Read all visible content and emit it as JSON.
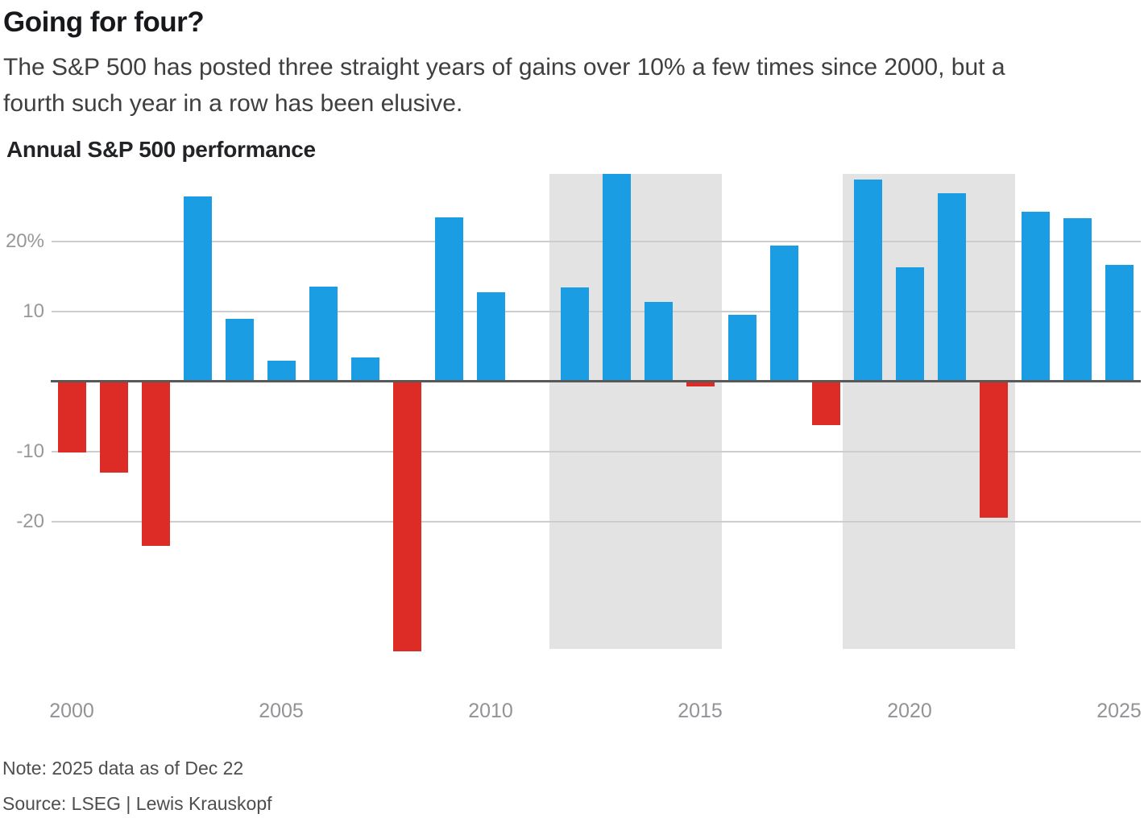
{
  "header": {
    "title": "Going for four?",
    "subtitle_lines": [
      "The S&P 500 has posted three straight years of gains over 10% a few times since 2000, but a",
      "fourth such year in a row has been elusive."
    ],
    "chart_heading": "Annual S&P 500 performance"
  },
  "chart_data": {
    "type": "bar",
    "title": "Annual S&P 500 performance",
    "xlabel": "",
    "ylabel": "",
    "unit": "%",
    "x": [
      2000,
      2001,
      2002,
      2003,
      2004,
      2005,
      2006,
      2007,
      2008,
      2009,
      2010,
      2011,
      2012,
      2013,
      2014,
      2015,
      2016,
      2017,
      2018,
      2019,
      2020,
      2021,
      2022,
      2023,
      2024,
      2025
    ],
    "values": [
      -10.1,
      -13.0,
      -23.4,
      26.4,
      9.0,
      3.0,
      13.6,
      3.5,
      -38.5,
      23.5,
      12.8,
      0.0,
      13.4,
      29.6,
      11.4,
      -0.7,
      9.5,
      19.4,
      -6.2,
      28.9,
      16.3,
      26.9,
      -19.4,
      24.2,
      23.3,
      16.7
    ],
    "ylim": [
      -38.5,
      29.6
    ],
    "yticks": [
      {
        "value": 20,
        "label": "20%"
      },
      {
        "value": 10,
        "label": "10"
      },
      {
        "value": -10,
        "label": "-10"
      },
      {
        "value": -20,
        "label": "-20"
      }
    ],
    "xticks": [
      2000,
      2005,
      2010,
      2015,
      2020,
      2025
    ],
    "highlight_bands": [
      {
        "from": 2012,
        "to": 2015
      },
      {
        "from": 2019,
        "to": 2022
      }
    ],
    "grid": "horizontal",
    "legend": "none",
    "colors": {
      "positive_bar": "#1a9de2",
      "negative_bar": "#dd2b25",
      "highlight_band": "#e3e3e3",
      "gridline": "#cdcdcd",
      "axis_line": "#56585a",
      "tick_label": "#97989a"
    }
  },
  "footer": {
    "note": "Note: 2025 data as of Dec 22",
    "source": "Source: LSEG | Lewis Krauskopf"
  }
}
